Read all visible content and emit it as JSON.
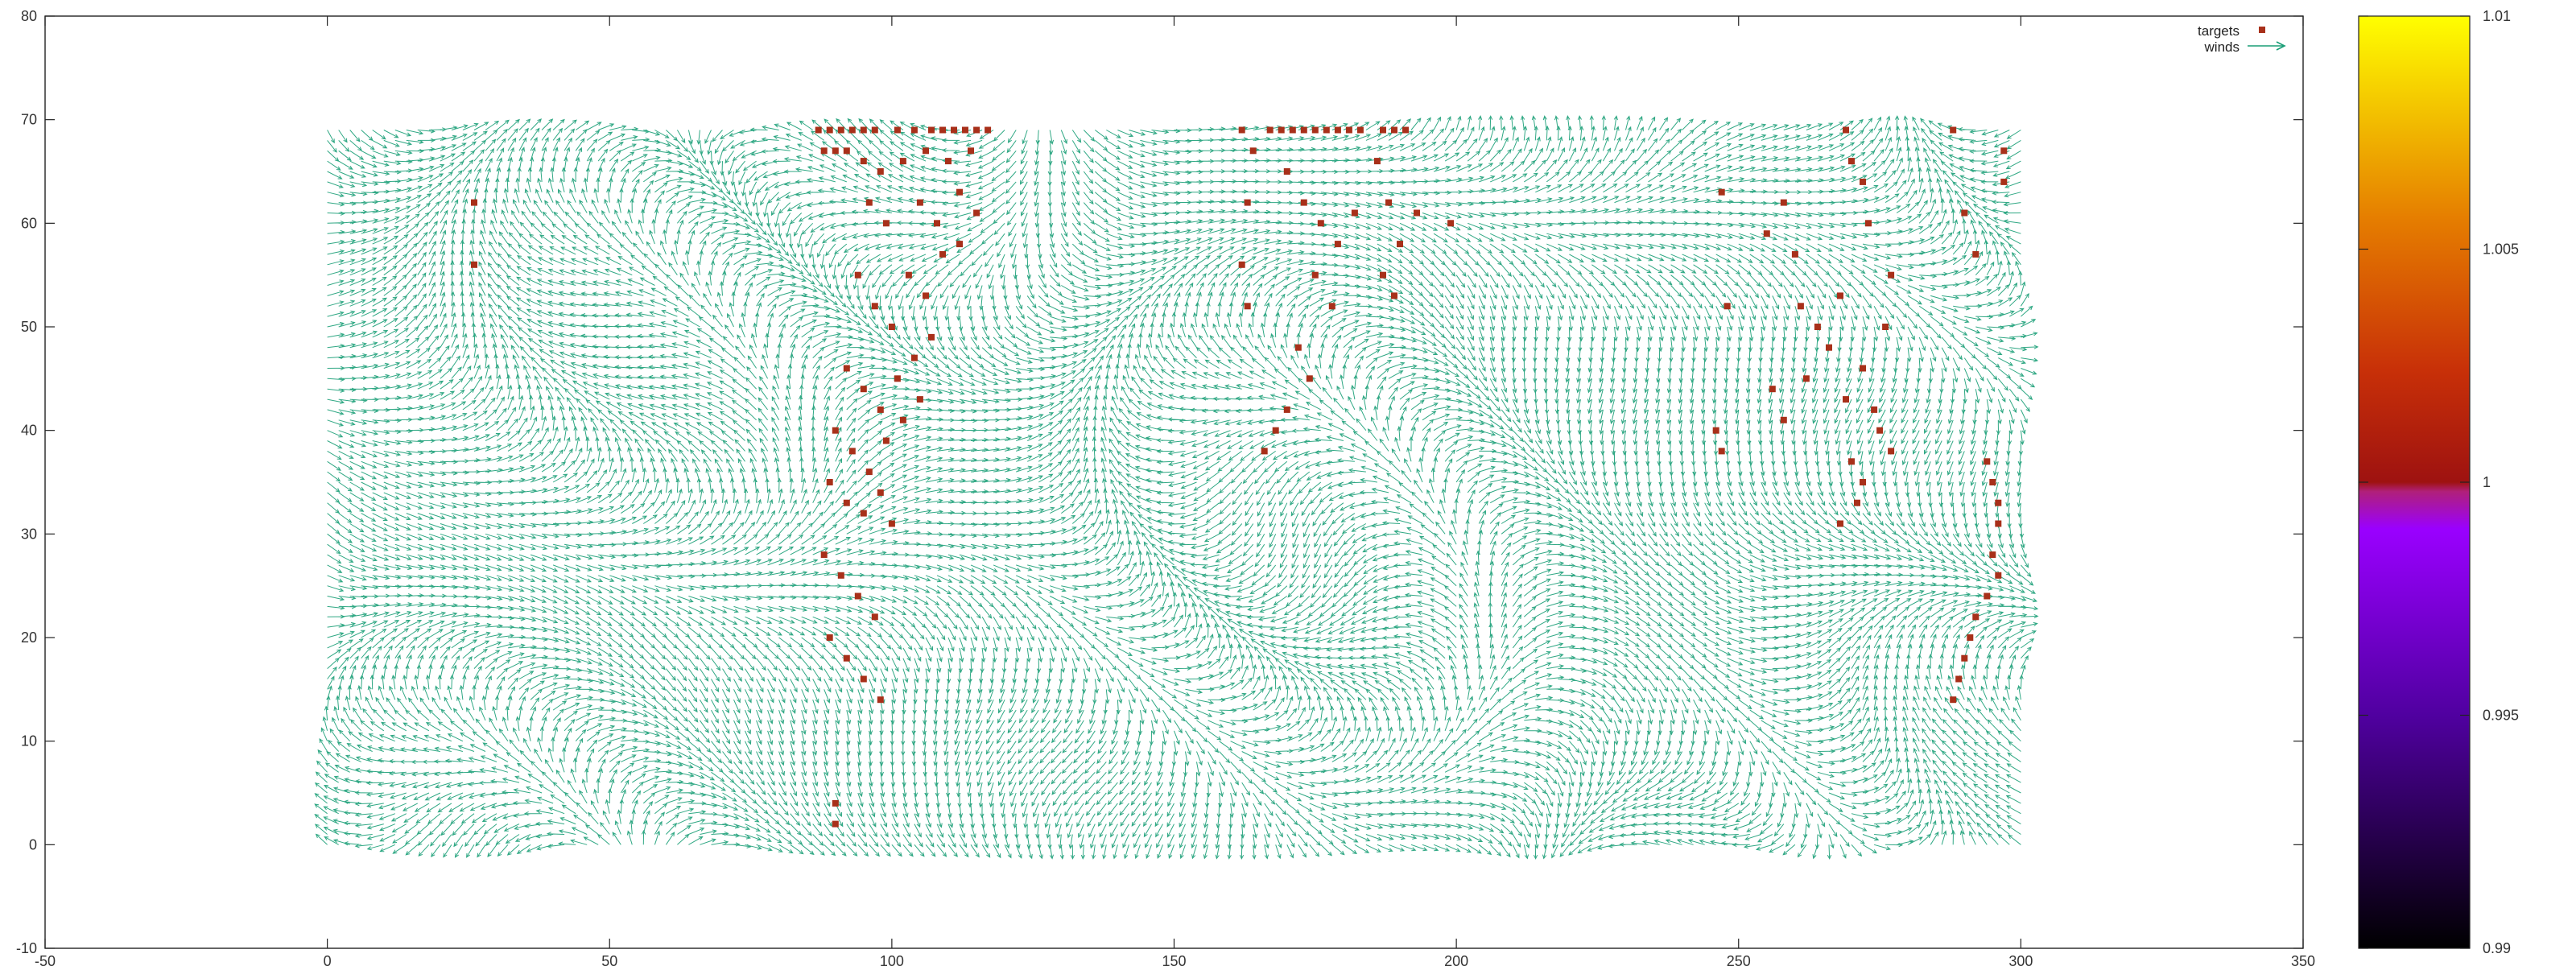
{
  "chart_data": {
    "type": "vector-field-scatter",
    "title": "",
    "xlabel": "",
    "ylabel": "",
    "xlim": [
      -50,
      350
    ],
    "ylim": [
      -10,
      80
    ],
    "xticks": [
      "-50",
      "0",
      "50",
      "100",
      "150",
      "200",
      "250",
      "300",
      "350"
    ],
    "yticks": [
      "-10",
      "0",
      "10",
      "20",
      "30",
      "40",
      "50",
      "60",
      "70",
      "80"
    ],
    "grid": false,
    "legend_placement": "top-right",
    "legend": [
      "targets",
      "winds"
    ],
    "colors": {
      "winds": "#1a9e77",
      "targets": "#a8301a"
    },
    "winds_grid": {
      "x_range": [
        0,
        300
      ],
      "y_range": [
        0,
        69
      ],
      "x_step": 2,
      "y_step": 1,
      "arrow_length": 3
    },
    "targets": [
      [
        87,
        69
      ],
      [
        89,
        69
      ],
      [
        91,
        69
      ],
      [
        93,
        69
      ],
      [
        95,
        69
      ],
      [
        97,
        69
      ],
      [
        101,
        69
      ],
      [
        104,
        69
      ],
      [
        107,
        69
      ],
      [
        109,
        69
      ],
      [
        111,
        69
      ],
      [
        113,
        69
      ],
      [
        115,
        69
      ],
      [
        117,
        69
      ],
      [
        88,
        67
      ],
      [
        90,
        67
      ],
      [
        92,
        67
      ],
      [
        95,
        66
      ],
      [
        98,
        65
      ],
      [
        102,
        66
      ],
      [
        106,
        67
      ],
      [
        110,
        66
      ],
      [
        114,
        67
      ],
      [
        96,
        62
      ],
      [
        99,
        60
      ],
      [
        105,
        62
      ],
      [
        108,
        60
      ],
      [
        112,
        63
      ],
      [
        115,
        61
      ],
      [
        94,
        55
      ],
      [
        97,
        52
      ],
      [
        100,
        50
      ],
      [
        103,
        55
      ],
      [
        106,
        53
      ],
      [
        109,
        57
      ],
      [
        112,
        58
      ],
      [
        92,
        46
      ],
      [
        95,
        44
      ],
      [
        98,
        42
      ],
      [
        101,
        45
      ],
      [
        104,
        47
      ],
      [
        107,
        49
      ],
      [
        90,
        40
      ],
      [
        93,
        38
      ],
      [
        96,
        36
      ],
      [
        99,
        39
      ],
      [
        102,
        41
      ],
      [
        105,
        43
      ],
      [
        89,
        35
      ],
      [
        92,
        33
      ],
      [
        95,
        32
      ],
      [
        98,
        34
      ],
      [
        100,
        31
      ],
      [
        88,
        28
      ],
      [
        91,
        26
      ],
      [
        94,
        24
      ],
      [
        97,
        22
      ],
      [
        89,
        20
      ],
      [
        92,
        18
      ],
      [
        95,
        16
      ],
      [
        98,
        14
      ],
      [
        90,
        4
      ],
      [
        90,
        2
      ],
      [
        162,
        69
      ],
      [
        164,
        67
      ],
      [
        163,
        62
      ],
      [
        162,
        56
      ],
      [
        163,
        52
      ],
      [
        167,
        69
      ],
      [
        169,
        69
      ],
      [
        171,
        69
      ],
      [
        173,
        69
      ],
      [
        175,
        69
      ],
      [
        177,
        69
      ],
      [
        179,
        69
      ],
      [
        181,
        69
      ],
      [
        183,
        69
      ],
      [
        187,
        69
      ],
      [
        189,
        69
      ],
      [
        191,
        69
      ],
      [
        170,
        65
      ],
      [
        173,
        62
      ],
      [
        176,
        60
      ],
      [
        179,
        58
      ],
      [
        182,
        61
      ],
      [
        175,
        55
      ],
      [
        178,
        52
      ],
      [
        172,
        48
      ],
      [
        174,
        45
      ],
      [
        170,
        42
      ],
      [
        168,
        40
      ],
      [
        166,
        38
      ],
      [
        186,
        66
      ],
      [
        188,
        62
      ],
      [
        190,
        58
      ],
      [
        187,
        55
      ],
      [
        189,
        53
      ],
      [
        26,
        62
      ],
      [
        26,
        56
      ],
      [
        193,
        61
      ],
      [
        199,
        60
      ],
      [
        247,
        63
      ],
      [
        248,
        52
      ],
      [
        255,
        59
      ],
      [
        258,
        62
      ],
      [
        260,
        57
      ],
      [
        261,
        52
      ],
      [
        264,
        50
      ],
      [
        268,
        53
      ],
      [
        256,
        44
      ],
      [
        258,
        41
      ],
      [
        262,
        45
      ],
      [
        266,
        48
      ],
      [
        269,
        43
      ],
      [
        272,
        46
      ],
      [
        274,
        42
      ],
      [
        277,
        55
      ],
      [
        276,
        50
      ],
      [
        270,
        37
      ],
      [
        272,
        35
      ],
      [
        275,
        40
      ],
      [
        277,
        38
      ],
      [
        271,
        33
      ],
      [
        268,
        31
      ],
      [
        269,
        69
      ],
      [
        270,
        66
      ],
      [
        272,
        64
      ],
      [
        273,
        60
      ],
      [
        246,
        40
      ],
      [
        247,
        38
      ],
      [
        288,
        69
      ],
      [
        290,
        61
      ],
      [
        297,
        67
      ],
      [
        297,
        64
      ],
      [
        292,
        57
      ],
      [
        294,
        37
      ],
      [
        295,
        35
      ],
      [
        296,
        33
      ],
      [
        296,
        31
      ],
      [
        295,
        28
      ],
      [
        296,
        26
      ],
      [
        294,
        24
      ],
      [
        292,
        22
      ],
      [
        291,
        20
      ],
      [
        290,
        18
      ],
      [
        289,
        16
      ],
      [
        288,
        14
      ]
    ],
    "colorbar": {
      "range": [
        0.99,
        1.01
      ],
      "ticks": [
        "0.99",
        "0.995",
        "1",
        "1.005",
        "1.01"
      ],
      "stops": [
        "#000000",
        "#3a0060",
        "#8000ff",
        "#b01090",
        "#a01010",
        "#d04000",
        "#ff9500",
        "#ffff00"
      ]
    }
  }
}
